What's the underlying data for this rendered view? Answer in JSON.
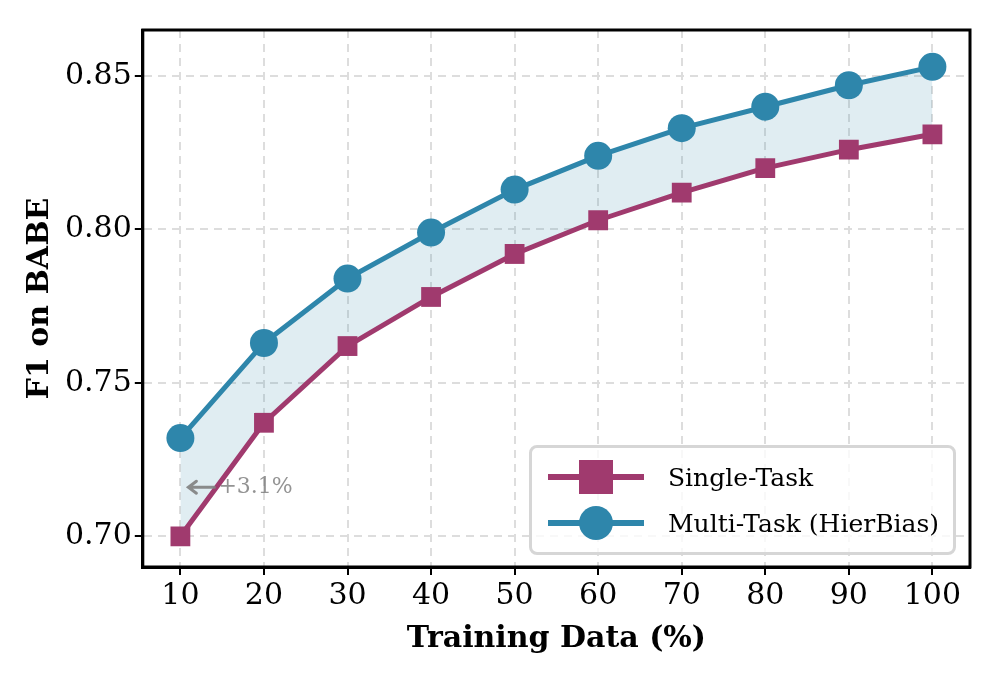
{
  "chart_data": {
    "type": "line",
    "xlabel": "Training Data (%)",
    "ylabel": "F1 on BABE",
    "x": [
      10,
      20,
      30,
      40,
      50,
      60,
      70,
      80,
      90,
      100
    ],
    "series": [
      {
        "name": "Single-Task",
        "color": "#a03a6e",
        "marker": "square",
        "values": [
          0.7,
          0.737,
          0.762,
          0.778,
          0.792,
          0.803,
          0.812,
          0.82,
          0.826,
          0.831
        ]
      },
      {
        "name": "Multi-Task (HierBias)",
        "color": "#2e86ab",
        "marker": "circle",
        "values": [
          0.732,
          0.763,
          0.784,
          0.799,
          0.813,
          0.824,
          0.833,
          0.84,
          0.847,
          0.853
        ],
        "lower": [
          0.7,
          0.737,
          0.762,
          0.778,
          0.792,
          0.803,
          0.812,
          0.82,
          0.826,
          0.831
        ],
        "upper": [
          0.732,
          0.763,
          0.784,
          0.799,
          0.813,
          0.824,
          0.833,
          0.84,
          0.847,
          0.853
        ]
      }
    ],
    "xlim": [
      5.5,
      104.5
    ],
    "xticks": [
      10,
      20,
      30,
      40,
      50,
      60,
      70,
      80,
      90,
      100
    ],
    "ylim": [
      0.69,
      0.865
    ],
    "yticks": [
      {
        "value": 0.7,
        "label": "0.70"
      },
      0.75,
      {
        "value": 0.8,
        "label": "0.80"
      },
      0.85
    ],
    "annotations": [
      {
        "text": "+3.1%",
        "x": 10,
        "y": 0.716
      }
    ],
    "grid": true,
    "legend": "bottom right",
    "line_style": "solid"
  }
}
